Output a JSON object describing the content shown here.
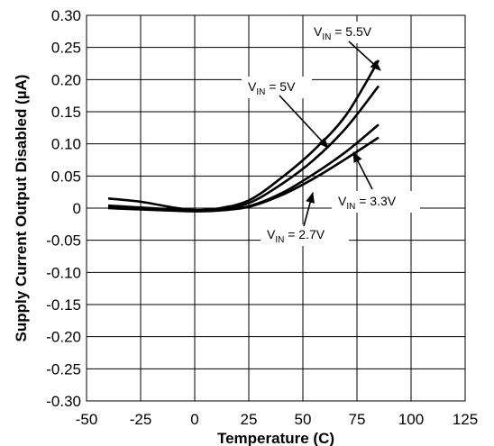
{
  "chart_data": {
    "type": "line",
    "title": "",
    "xlabel": "Temperature (C)",
    "ylabel": "Supply Current Output Disabled (µA)",
    "xlim": [
      -50,
      125
    ],
    "ylim": [
      -0.3,
      0.3
    ],
    "grid": true,
    "x_ticks": [
      "-50",
      "-25",
      "0",
      "25",
      "50",
      "75",
      "100",
      "125"
    ],
    "y_ticks": [
      "0.30",
      "0.25",
      "0.20",
      "0.15",
      "0.10",
      "0.05",
      "0",
      "-0.05",
      "-0.10",
      "-0.15",
      "-0.20",
      "-0.25",
      "-0.30"
    ],
    "series": [
      {
        "name": "VIN = 5.5V",
        "x": [
          -40,
          -25,
          -10,
          0,
          10,
          25,
          40,
          55,
          70,
          85
        ],
        "y": [
          0.004,
          0.001,
          -0.002,
          -0.003,
          -0.001,
          0.012,
          0.047,
          0.09,
          0.145,
          0.23
        ]
      },
      {
        "name": "VIN = 5V",
        "x": [
          -40,
          -25,
          -10,
          0,
          10,
          25,
          40,
          55,
          70,
          85
        ],
        "y": [
          0.002,
          0.0,
          -0.003,
          -0.004,
          -0.002,
          0.008,
          0.037,
          0.075,
          0.125,
          0.19
        ]
      },
      {
        "name": "VIN = 3.3V",
        "x": [
          -40,
          -25,
          -10,
          0,
          10,
          25,
          40,
          55,
          70,
          85
        ],
        "y": [
          0.015,
          0.01,
          0.001,
          -0.003,
          -0.003,
          0.003,
          0.023,
          0.053,
          0.088,
          0.13
        ]
      },
      {
        "name": "VIN = 2.7V",
        "x": [
          -40,
          -25,
          -10,
          0,
          10,
          25,
          40,
          55,
          70,
          85
        ],
        "y": [
          0.0,
          -0.002,
          -0.004,
          -0.005,
          -0.004,
          0.002,
          0.02,
          0.046,
          0.077,
          0.11
        ]
      }
    ],
    "annotations": [
      {
        "main": "V",
        "sub": "IN",
        "rest": " = 5.5V"
      },
      {
        "main": "V",
        "sub": "IN",
        "rest": " = 5V"
      },
      {
        "main": "V",
        "sub": "IN",
        "rest": " = 3.3V"
      },
      {
        "main": "V",
        "sub": "IN",
        "rest": " = 2.7V"
      }
    ]
  }
}
